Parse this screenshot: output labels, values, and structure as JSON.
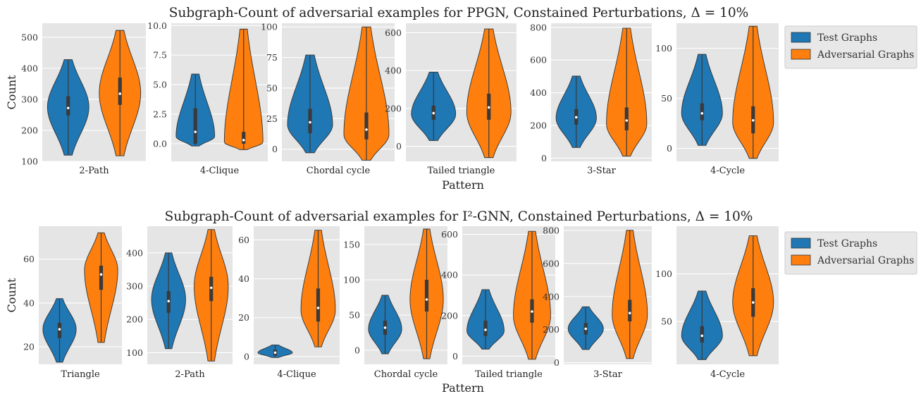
{
  "figure": {
    "x_axis_label": "Pattern",
    "y_axis_label": "Count"
  },
  "legend": {
    "entries": [
      {
        "label": "Test Graphs",
        "color": "#1f77b4"
      },
      {
        "label": "Adversarial Graphs",
        "color": "#ff7f0e"
      }
    ]
  },
  "chart_data": [
    {
      "type": "violin",
      "title": "Subgraph-Count of adversarial examples for PPGN, Constained Perturbations, Δ = 10%",
      "xlabel": "Pattern",
      "ylabel": "Count",
      "legend_position": "right",
      "grid": true,
      "series_names": [
        "Test Graphs",
        "Adversarial Graphs"
      ],
      "panels": [
        {
          "category": "2-Path",
          "ylim": [
            100,
            545
          ],
          "yticks": [
            100,
            200,
            300,
            400,
            500
          ],
          "tick_labels": [
            "100",
            "200",
            "300",
            "400",
            "500"
          ],
          "test": {
            "min": 120,
            "max": 428,
            "q1": 248,
            "median": 272,
            "q3": 310,
            "mode": 275
          },
          "adversarial": {
            "min": 118,
            "max": 522,
            "q1": 282,
            "median": 318,
            "q3": 370,
            "mode": 320
          }
        },
        {
          "category": "4-Clique",
          "ylim": [
            -1.5,
            10.2
          ],
          "yticks": [
            0,
            2.5,
            5,
            7.5,
            10
          ],
          "tick_labels": [
            "0.0",
            "2.5",
            "5.0",
            "7.5",
            "10.0"
          ],
          "test": {
            "min": -0.2,
            "max": 5.9,
            "q1": 0,
            "median": 1,
            "q3": 3,
            "mode": 0.6
          },
          "adversarial": {
            "min": -0.5,
            "max": 9.7,
            "q1": 0,
            "median": 0.3,
            "q3": 1,
            "mode": 0.1
          }
        },
        {
          "category": "Chordal cycle",
          "ylim": [
            -10,
            103
          ],
          "yticks": [
            0,
            25,
            50,
            75,
            100
          ],
          "tick_labels": [
            "0",
            "25",
            "50",
            "75",
            "100"
          ],
          "test": {
            "min": -3,
            "max": 77,
            "q1": 13,
            "median": 22,
            "q3": 33,
            "mode": 20
          },
          "adversarial": {
            "min": -9,
            "max": 100,
            "q1": 8,
            "median": 16,
            "q3": 30,
            "mode": 12
          }
        },
        {
          "category": "Tailed triangle",
          "ylim": [
            -80,
            650
          ],
          "yticks": [
            0,
            200,
            400,
            600
          ],
          "tick_labels": [
            "0",
            "200",
            "400",
            "600"
          ],
          "test": {
            "min": 30,
            "max": 392,
            "q1": 140,
            "median": 175,
            "q3": 215,
            "mode": 170
          },
          "adversarial": {
            "min": -60,
            "max": 620,
            "q1": 140,
            "median": 205,
            "q3": 278,
            "mode": 180
          }
        },
        {
          "category": "3-Star",
          "ylim": [
            -20,
            825
          ],
          "yticks": [
            0,
            200,
            400,
            600,
            800
          ],
          "tick_labels": [
            "0",
            "200",
            "400",
            "600",
            "800"
          ],
          "test": {
            "min": 65,
            "max": 502,
            "q1": 205,
            "median": 250,
            "q3": 300,
            "mode": 245
          },
          "adversarial": {
            "min": 12,
            "max": 795,
            "q1": 170,
            "median": 230,
            "q3": 310,
            "mode": 210
          }
        },
        {
          "category": "4-Cycle",
          "ylim": [
            -13,
            125
          ],
          "yticks": [
            0,
            50,
            100
          ],
          "tick_labels": [
            "0",
            "50",
            "100"
          ],
          "test": {
            "min": 3,
            "max": 94,
            "q1": 28,
            "median": 35,
            "q3": 45,
            "mode": 35
          },
          "adversarial": {
            "min": -10,
            "max": 122,
            "q1": 15,
            "median": 28,
            "q3": 42,
            "mode": 26
          }
        }
      ]
    },
    {
      "type": "violin",
      "title": "Subgraph-Count of adversarial examples for I²-GNN, Constained Perturbations, Δ = 10%",
      "xlabel": "Pattern",
      "ylabel": "Count",
      "legend_position": "right",
      "grid": true,
      "series_names": [
        "Test Graphs",
        "Adversarial Graphs"
      ],
      "panels": [
        {
          "category": "Triangle",
          "ylim": [
            12,
            75
          ],
          "yticks": [
            20,
            40,
            60
          ],
          "tick_labels": [
            "20",
            "40",
            "60"
          ],
          "test": {
            "min": 13,
            "max": 42,
            "q1": 24,
            "median": 28,
            "q3": 31,
            "mode": 28
          },
          "adversarial": {
            "min": 22,
            "max": 72,
            "q1": 46,
            "median": 53,
            "q3": 57,
            "mode": 55
          }
        },
        {
          "category": "2-Path",
          "ylim": [
            65,
            480
          ],
          "yticks": [
            100,
            200,
            300,
            400
          ],
          "tick_labels": [
            "100",
            "200",
            "300",
            "400"
          ],
          "test": {
            "min": 112,
            "max": 400,
            "q1": 220,
            "median": 255,
            "q3": 285,
            "mode": 260
          },
          "adversarial": {
            "min": 75,
            "max": 470,
            "q1": 255,
            "median": 295,
            "q3": 328,
            "mode": 300
          }
        },
        {
          "category": "4-Clique",
          "ylim": [
            -4,
            67
          ],
          "yticks": [
            0,
            20,
            40,
            60
          ],
          "tick_labels": [
            "0",
            "20",
            "40",
            "60"
          ],
          "test": {
            "min": -0.5,
            "max": 6,
            "q1": 0.5,
            "median": 2,
            "q3": 3.5,
            "mode": 2
          },
          "adversarial": {
            "min": 5,
            "max": 65,
            "q1": 18,
            "median": 25,
            "q3": 35,
            "mode": 24
          }
        },
        {
          "category": "Chordal cycle",
          "ylim": [
            -20,
            176
          ],
          "yticks": [
            0,
            50,
            100,
            150
          ],
          "tick_labels": [
            "0",
            "50",
            "100",
            "150"
          ],
          "test": {
            "min": -5,
            "max": 78,
            "q1": 22,
            "median": 32,
            "q3": 42,
            "mode": 30
          },
          "adversarial": {
            "min": -12,
            "max": 172,
            "q1": 55,
            "median": 72,
            "q3": 100,
            "mode": 72
          }
        },
        {
          "category": "Tailed triangle",
          "ylim": [
            -40,
            640
          ],
          "yticks": [
            0,
            200,
            400,
            600
          ],
          "tick_labels": [
            "0",
            "200",
            "400",
            "600"
          ],
          "test": {
            "min": 35,
            "max": 328,
            "q1": 100,
            "median": 130,
            "q3": 175,
            "mode": 125
          },
          "adversarial": {
            "min": -15,
            "max": 615,
            "q1": 165,
            "median": 220,
            "q3": 280,
            "mode": 200
          }
        },
        {
          "category": "3-Star",
          "ylim": [
            -10,
            825
          ],
          "yticks": [
            0,
            200,
            400,
            600,
            800
          ],
          "tick_labels": [
            "0",
            "200",
            "400",
            "600",
            "800"
          ],
          "test": {
            "min": 80,
            "max": 338,
            "q1": 170,
            "median": 205,
            "q3": 240,
            "mode": 205
          },
          "adversarial": {
            "min": 25,
            "max": 800,
            "q1": 250,
            "median": 300,
            "q3": 380,
            "mode": 290
          }
        },
        {
          "category": "4-Cycle",
          "ylim": [
            5,
            150
          ],
          "yticks": [
            50,
            100
          ],
          "tick_labels": [
            "50",
            "100"
          ],
          "test": {
            "min": 10,
            "max": 82,
            "q1": 28,
            "median": 35,
            "q3": 45,
            "mode": 35
          },
          "adversarial": {
            "min": 14,
            "max": 140,
            "q1": 55,
            "median": 70,
            "q3": 85,
            "mode": 70
          }
        }
      ]
    }
  ]
}
